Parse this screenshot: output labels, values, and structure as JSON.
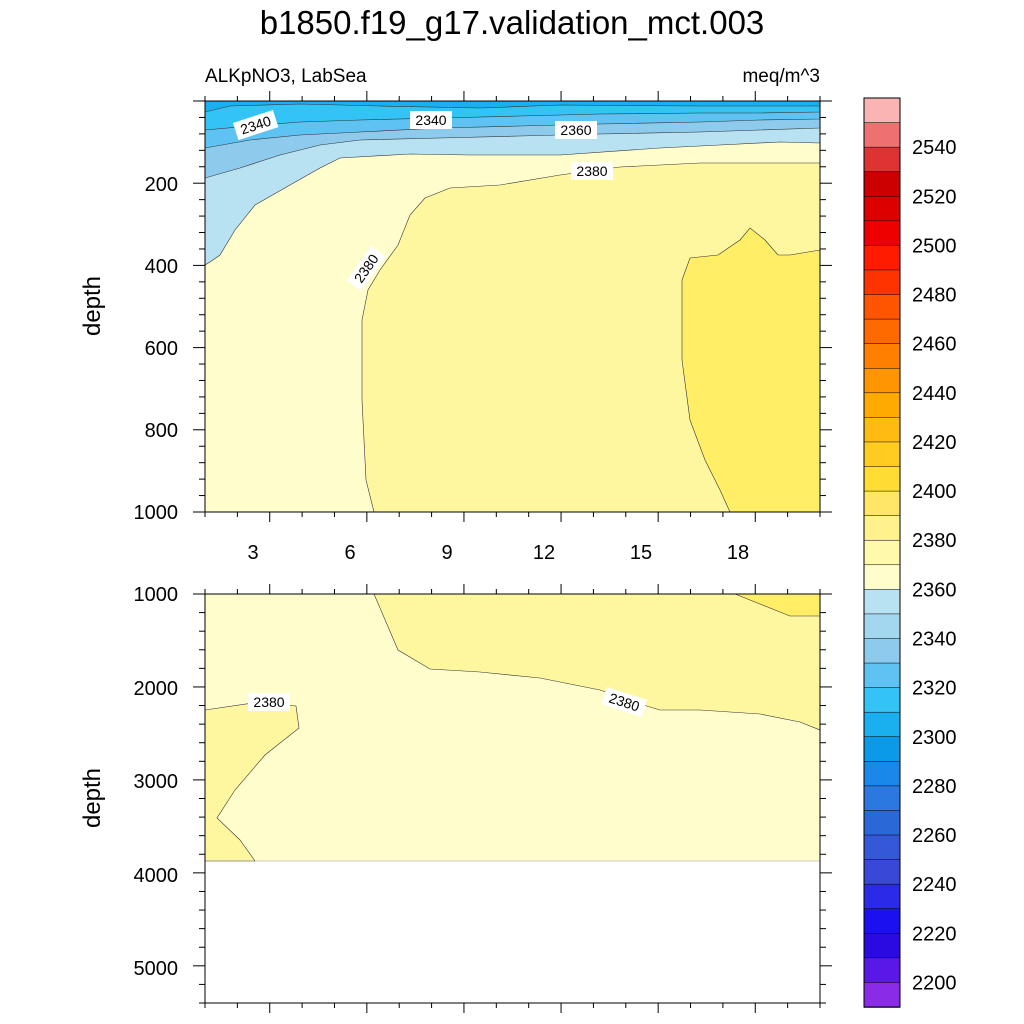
{
  "chart_data": {
    "type": "heatmap",
    "title": "b1850.f19_g17.validation_mct.003",
    "subtitle_left": "ALKpNO3, LabSea",
    "subtitle_right": "meq/m^3",
    "panels": [
      {
        "id": "upper",
        "ylabel": "depth",
        "ylim": [
          1000,
          0
        ],
        "xlim": [
          1,
          20
        ],
        "xticks": [
          "3",
          "6",
          "9",
          "12",
          "15",
          "18"
        ],
        "yticks": [
          "200",
          "400",
          "600",
          "800",
          "1000"
        ],
        "contour_labels": [
          "2340",
          "2340",
          "2360",
          "2380",
          "2380"
        ]
      },
      {
        "id": "lower",
        "ylabel": "depth",
        "ylim": [
          5400,
          1000
        ],
        "xlim": [
          1,
          20
        ],
        "xticks": [],
        "yticks": [
          "1000",
          "2000",
          "3000",
          "4000",
          "5000"
        ],
        "contour_labels": [
          "2380",
          "2380"
        ]
      }
    ],
    "colorbar": {
      "labels": [
        "2540",
        "2520",
        "2500",
        "2480",
        "2460",
        "2440",
        "2420",
        "2400",
        "2380",
        "2360",
        "2340",
        "2320",
        "2300",
        "2280",
        "2260",
        "2240",
        "2220",
        "2200"
      ],
      "colors": [
        "#fab4b4",
        "#ee7070",
        "#dd3333",
        "#cc0000",
        "#dd0000",
        "#ee0000",
        "#ff1a00",
        "#ff3300",
        "#ff5500",
        "#ff6a00",
        "#ff8000",
        "#ff9500",
        "#ffaa00",
        "#ffbb11",
        "#ffcc22",
        "#ffdd33",
        "#ffe666",
        "#fff18c",
        "#fffaaa",
        "#fffdcc",
        "#b8e2f2",
        "#a3d6ef",
        "#8dcaec",
        "#5ec2f2",
        "#33c4f5",
        "#1ab0f0",
        "#0a9ae8",
        "#1a88e8",
        "#2a78e0",
        "#2a68d8",
        "#3558d8",
        "#3a48d8",
        "#2a2ae8",
        "#1a10f0",
        "#2a0ae0",
        "#5a18e8",
        "#8a2be8"
      ]
    }
  }
}
